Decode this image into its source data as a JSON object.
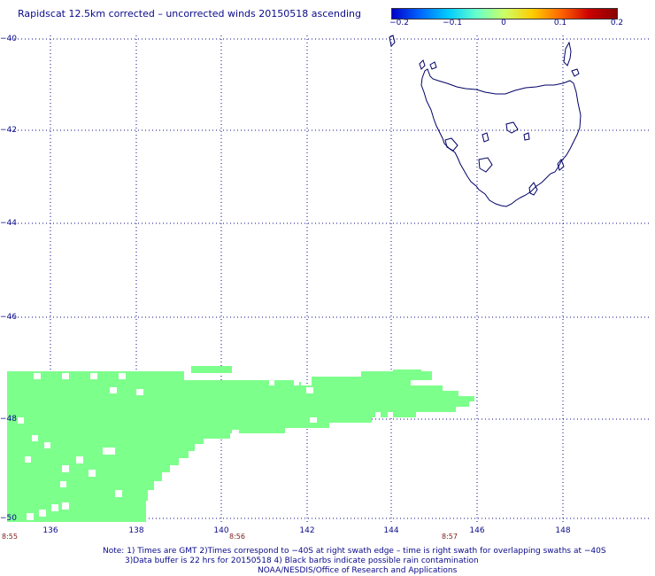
{
  "title": "Rapidscat 12.5km corrected – uncorrected winds 20150518 ascending",
  "colorbar": {
    "ticks": [
      "−0.2",
      "−0.1",
      "0",
      "0.1",
      "0.2"
    ],
    "stops": [
      "#0000cc",
      "#0066ff",
      "#00ccff",
      "#66ffcc",
      "#ccff66",
      "#ffcc00",
      "#ff6600",
      "#cc0000",
      "#880000"
    ]
  },
  "map": {
    "lat_labels": [
      "−40",
      "−42",
      "−44",
      "−46",
      "−48",
      "−50"
    ],
    "lon_labels": [
      "136",
      "138",
      "140",
      "142",
      "144",
      "146",
      "148"
    ],
    "time_labels": [
      "8:55",
      "8:56",
      "8:57"
    ],
    "swath_color": "#7dff8c",
    "coast_color": "#000066",
    "grid_color": "#0a0a8a"
  },
  "notes": {
    "line1": "Note: 1) Times are GMT 2)Times correspond to −40S at right swath edge – time is right swath for overlapping swaths at −40S",
    "line2": "3)Data buffer is 22 hrs for 20150518 4) Black barbs indicate possible rain contamination",
    "line3": "NOAA/NESDIS/Office of Research and Applications"
  }
}
